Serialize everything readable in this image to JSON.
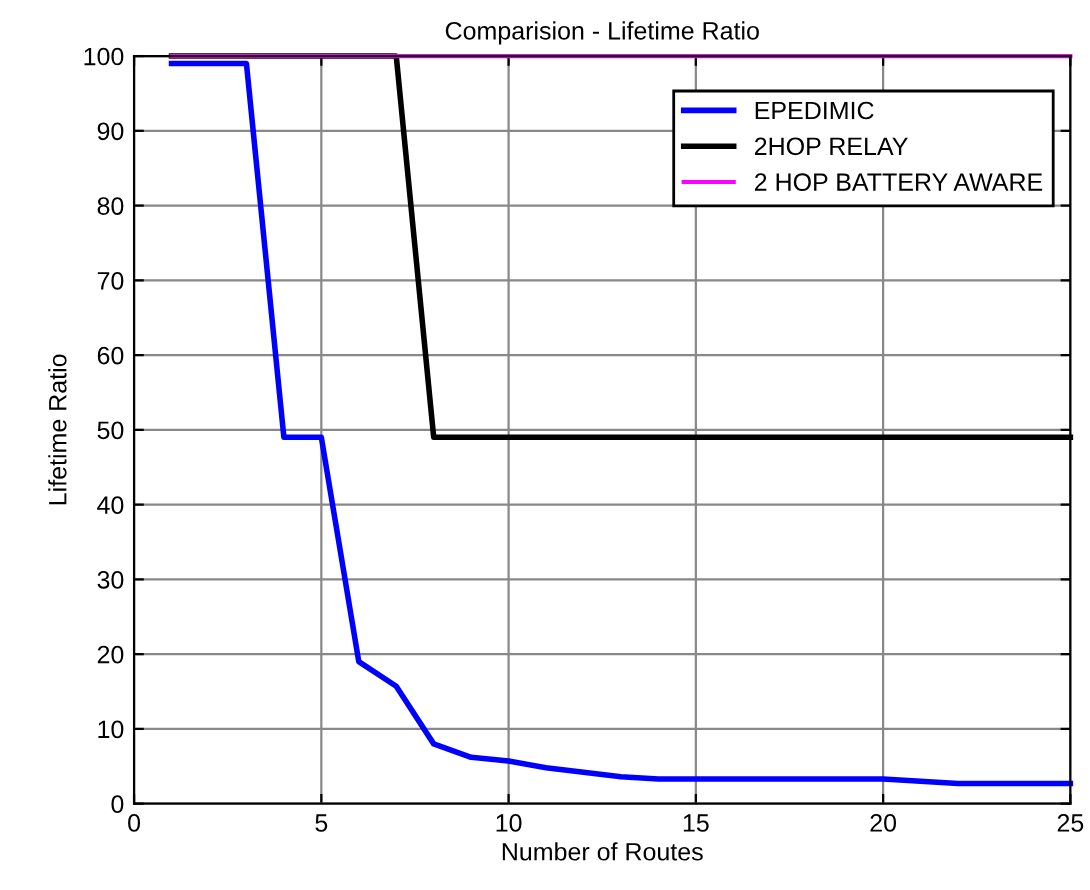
{
  "chart_data": {
    "type": "line",
    "title": "Comparision - Lifetime Ratio",
    "xlabel": "Number of Routes",
    "ylabel": "Lifetime Ratio",
    "x": [
      1,
      2,
      3,
      4,
      5,
      6,
      7,
      8,
      9,
      10,
      11,
      12,
      13,
      14,
      15,
      16,
      17,
      18,
      19,
      20,
      21,
      22,
      23,
      24,
      25
    ],
    "series": [
      {
        "name": "EPEDIMIC",
        "color": "#0000ff",
        "values": [
          99,
          99,
          99,
          49,
          49,
          19,
          15.7,
          8,
          6.2,
          5.7,
          4.8,
          4.2,
          3.6,
          3.3,
          3.3,
          3.3,
          3.3,
          3.3,
          3.3,
          3.3,
          3.0,
          2.7,
          2.7,
          2.7,
          2.7
        ]
      },
      {
        "name": "2HOP RELAY",
        "color": "#000000",
        "values": [
          100,
          100,
          100,
          100,
          100,
          100,
          100,
          49,
          49,
          49,
          49,
          49,
          49,
          49,
          49,
          49,
          49,
          49,
          49,
          49,
          49,
          49,
          49,
          49,
          49
        ]
      },
      {
        "name": "2 HOP BATTERY AWARE",
        "color": "#ff00ff",
        "values": [
          100,
          100,
          100,
          100,
          100,
          100,
          100,
          100,
          100,
          100,
          100,
          100,
          100,
          100,
          100,
          100,
          100,
          100,
          100,
          100,
          100,
          100,
          100,
          100,
          100
        ]
      }
    ],
    "xlim": [
      0,
      25
    ],
    "xticks": [
      0,
      5,
      10,
      15,
      20,
      25
    ],
    "ylim": [
      0,
      100
    ],
    "yticks": [
      0,
      10,
      20,
      30,
      40,
      50,
      60,
      70,
      80,
      90,
      100
    ],
    "grid": true,
    "legend": "top right",
    "line_style": "solid",
    "marker": "none"
  }
}
